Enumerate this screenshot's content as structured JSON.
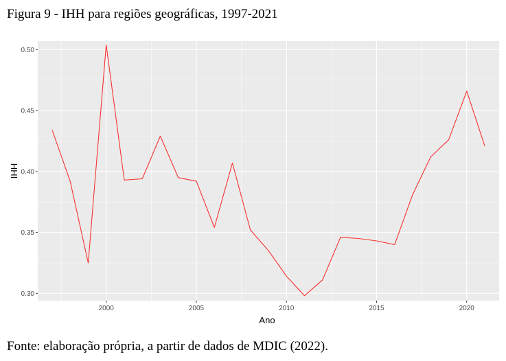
{
  "figure": {
    "title": "Figura 9 - IHH para regiões geográficas, 1997-2021",
    "source": "Fonte: elaboração própria, a partir de dados de MDIC (2022)."
  },
  "chart_data": {
    "type": "line",
    "xlabel": "Ano",
    "ylabel": "IHH",
    "xlim": [
      1996.2,
      2021.8
    ],
    "ylim": [
      0.294,
      0.507
    ],
    "x_ticks": [
      2000,
      2005,
      2010,
      2015,
      2020
    ],
    "y_ticks": [
      0.3,
      0.35,
      0.4,
      0.45,
      0.5
    ],
    "x_tick_labels": [
      "2000",
      "2005",
      "2010",
      "2015",
      "2020"
    ],
    "y_tick_labels": [
      "0.30",
      "0.35",
      "0.40",
      "0.45",
      "0.50"
    ],
    "grid": true,
    "line_color": "#f8312f",
    "panel_background": "#ebebeb",
    "grid_major_color": "#ffffff",
    "series": [
      {
        "x": [
          1997,
          1998,
          1999,
          2000,
          2001,
          2002,
          2003,
          2004,
          2005,
          2006,
          2007,
          2008,
          2009,
          2010,
          2011,
          2012,
          2013,
          2014,
          2015,
          2016,
          2017,
          2018,
          2019,
          2020,
          2021
        ],
        "values": [
          0.434,
          0.392,
          0.325,
          0.504,
          0.393,
          0.394,
          0.429,
          0.395,
          0.392,
          0.354,
          0.407,
          0.352,
          0.335,
          0.314,
          0.298,
          0.311,
          0.346,
          0.345,
          0.343,
          0.34,
          0.381,
          0.412,
          0.426,
          0.466,
          0.421
        ]
      }
    ]
  }
}
